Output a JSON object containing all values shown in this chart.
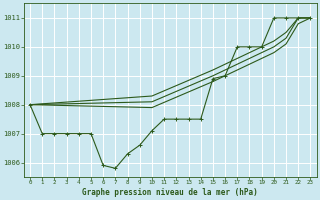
{
  "title": "Graphe pression niveau de la mer (hPa)",
  "bg_color": "#cce8f0",
  "grid_color": "#ffffff",
  "line_color": "#2d5a1b",
  "xlim": [
    -0.5,
    23.5
  ],
  "ylim": [
    1005.5,
    1011.5
  ],
  "yticks": [
    1006,
    1007,
    1008,
    1009,
    1010,
    1011
  ],
  "xticks": [
    0,
    1,
    2,
    3,
    4,
    5,
    6,
    7,
    8,
    9,
    10,
    11,
    12,
    13,
    14,
    15,
    16,
    17,
    18,
    19,
    20,
    21,
    22,
    23
  ],
  "series_main": {
    "x": [
      0,
      1,
      2,
      3,
      4,
      5,
      6,
      7,
      8,
      9,
      10,
      11,
      12,
      13,
      14,
      15,
      16,
      17,
      18,
      19,
      20,
      21,
      22,
      23
    ],
    "y": [
      1008.0,
      1007.0,
      1007.0,
      1007.0,
      1007.0,
      1007.0,
      1005.9,
      1005.8,
      1006.3,
      1006.6,
      1007.1,
      1007.5,
      1007.5,
      1007.5,
      1007.5,
      1008.9,
      1009.0,
      1010.0,
      1010.0,
      1010.0,
      1011.0,
      1011.0,
      1011.0,
      1011.0
    ]
  },
  "series_smooth1": {
    "x": [
      0,
      10,
      15,
      20,
      21,
      22,
      23
    ],
    "y": [
      1008.0,
      1008.3,
      1009.2,
      1010.2,
      1010.5,
      1011.0,
      1011.0
    ]
  },
  "series_smooth2": {
    "x": [
      0,
      10,
      15,
      20,
      21,
      22,
      23
    ],
    "y": [
      1008.0,
      1008.1,
      1009.0,
      1010.0,
      1010.3,
      1011.0,
      1011.0
    ]
  },
  "series_smooth3": {
    "x": [
      0,
      10,
      15,
      20,
      21,
      22,
      23
    ],
    "y": [
      1008.0,
      1007.9,
      1008.8,
      1009.8,
      1010.1,
      1010.8,
      1011.0
    ]
  }
}
